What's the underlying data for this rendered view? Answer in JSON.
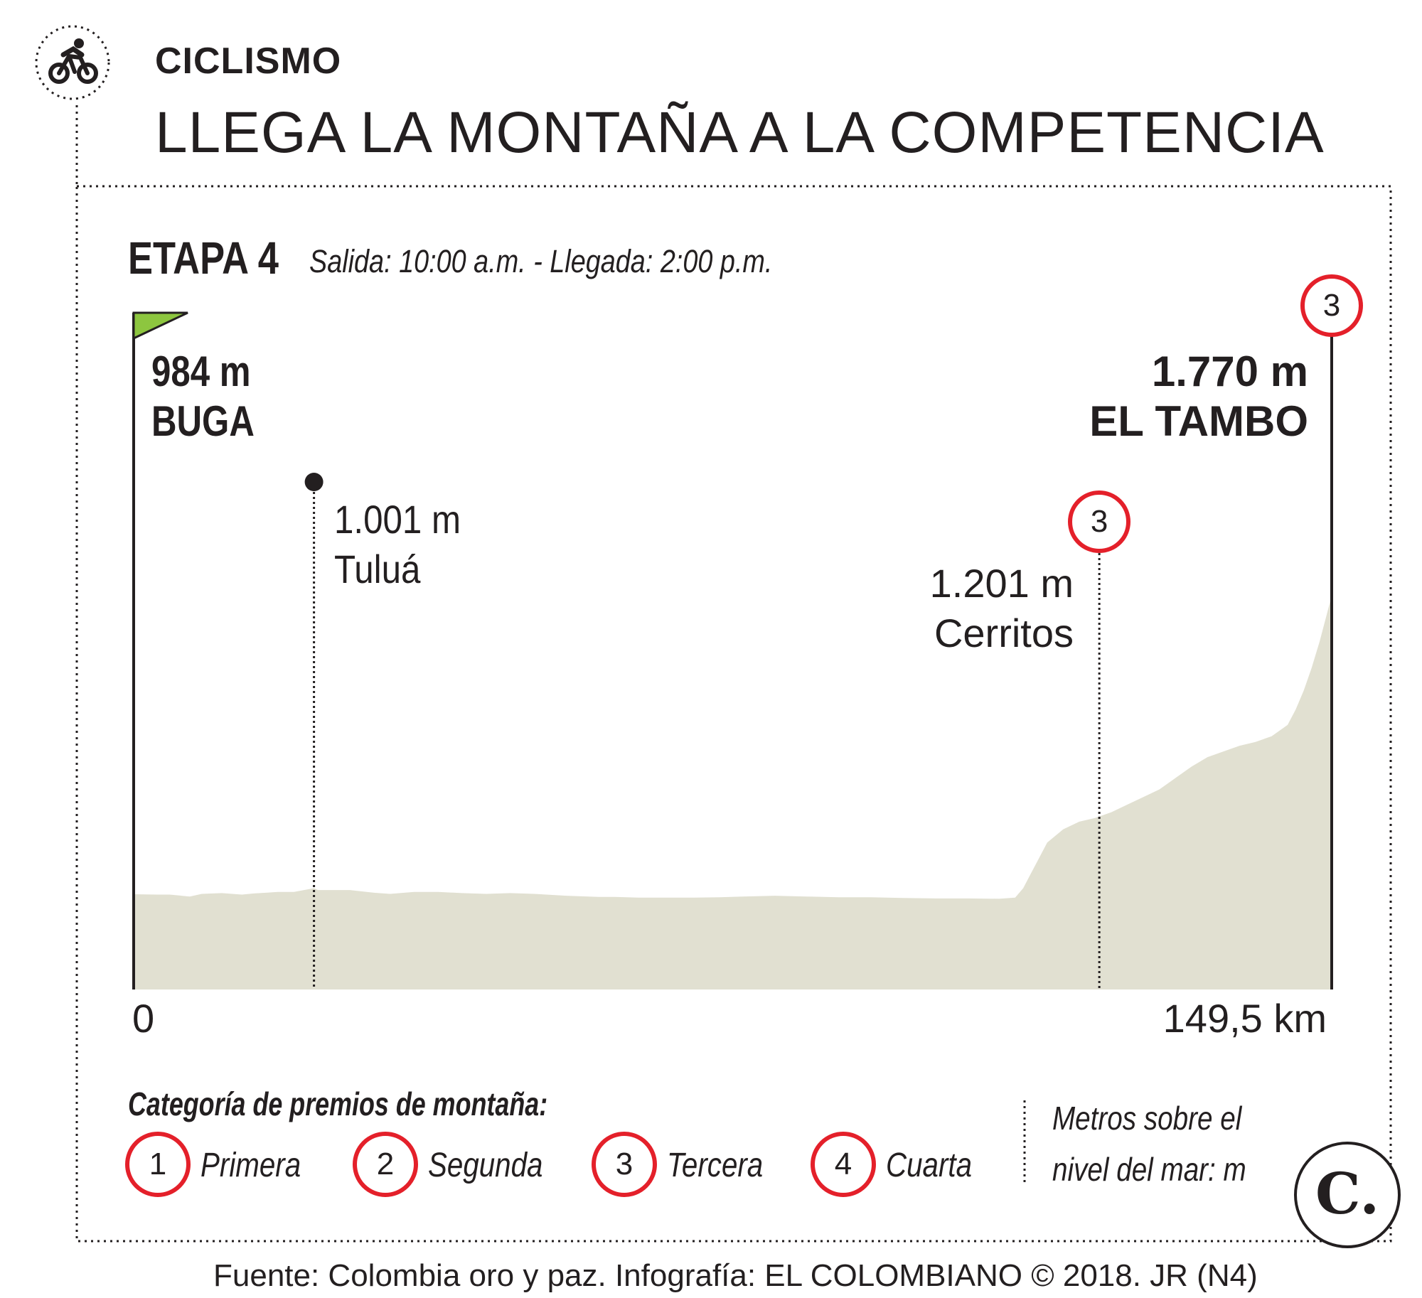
{
  "header": {
    "section": "CICLISMO",
    "headline": "LLEGA LA MONTAÑA A LA COMPETENCIA",
    "section_icon": "bicycle-icon"
  },
  "stage": {
    "title": "ETAPA 4",
    "schedule": "Salida: 10:00 a.m. - Llegada: 2:00 p.m."
  },
  "chart_data": {
    "type": "area",
    "title": "ETAPA 4",
    "x_unit": "km",
    "y_unit": "m",
    "xlim": [
      0,
      149.5
    ],
    "x_labels": {
      "start": "0",
      "end": "149,5 km"
    },
    "fill_color": "#e1e0d1",
    "profile": {
      "x": [
        0,
        3,
        4.5,
        7,
        8.5,
        11,
        13.5,
        15,
        18,
        20,
        22.5,
        23,
        27,
        30,
        32,
        35,
        38,
        41,
        44,
        47,
        50,
        54,
        58,
        60,
        63,
        66,
        70,
        73,
        76,
        80,
        84,
        88,
        92,
        96,
        100,
        104,
        108,
        110,
        111,
        112,
        113,
        114,
        116,
        118,
        120,
        122,
        124,
        126,
        128,
        130,
        132,
        134,
        136,
        138,
        140,
        142,
        144,
        145,
        146,
        147,
        148,
        149.5
      ],
      "y": [
        984,
        983,
        983,
        978,
        985,
        987,
        983,
        986,
        990,
        990,
        1000,
        995,
        995,
        988,
        985,
        990,
        990,
        987,
        985,
        987,
        985,
        980,
        977,
        977,
        975,
        975,
        975,
        976,
        978,
        980,
        978,
        976,
        976,
        974,
        973,
        973,
        972,
        975,
        1000,
        1040,
        1080,
        1120,
        1155,
        1175,
        1185,
        1200,
        1220,
        1240,
        1260,
        1290,
        1320,
        1345,
        1360,
        1375,
        1385,
        1400,
        1430,
        1470,
        1520,
        1580,
        1650,
        1770
      ]
    },
    "waypoints": [
      {
        "name": "BUGA",
        "km": 0,
        "elevation": 984,
        "label": "984 m",
        "type": "start"
      },
      {
        "name": "Tuluá",
        "km": 22.5,
        "elevation": 1001,
        "label": "1.001 m",
        "type": "point"
      },
      {
        "name": "Cerritos",
        "km": 120.5,
        "elevation": 1201,
        "label": "1.201 m",
        "type": "mountain",
        "category": 3
      },
      {
        "name": "EL TAMBO",
        "km": 149.5,
        "elevation": 1770,
        "label": "1.770 m",
        "type": "finish",
        "category": 3
      }
    ]
  },
  "legend": {
    "title": "Categoría de premios de montaña:",
    "items": [
      {
        "num": "1",
        "label": "Primera"
      },
      {
        "num": "2",
        "label": "Segunda"
      },
      {
        "num": "3",
        "label": "Tercera"
      },
      {
        "num": "4",
        "label": "Cuarta"
      }
    ],
    "units_line1": "Metros sobre el",
    "units_line2": "nivel del mar: m"
  },
  "footer": {
    "source": "Fuente: Colombia oro y paz. Infografía: EL COLOMBIANO © 2018. JR (N4)",
    "logo_letter": "C.",
    "logo_icon": "el-colombiano-logo"
  },
  "colors": {
    "accent_red": "#e4202a",
    "flag_green": "#8dc63f",
    "terrain": "#e1e0d1",
    "text": "#231f20"
  }
}
